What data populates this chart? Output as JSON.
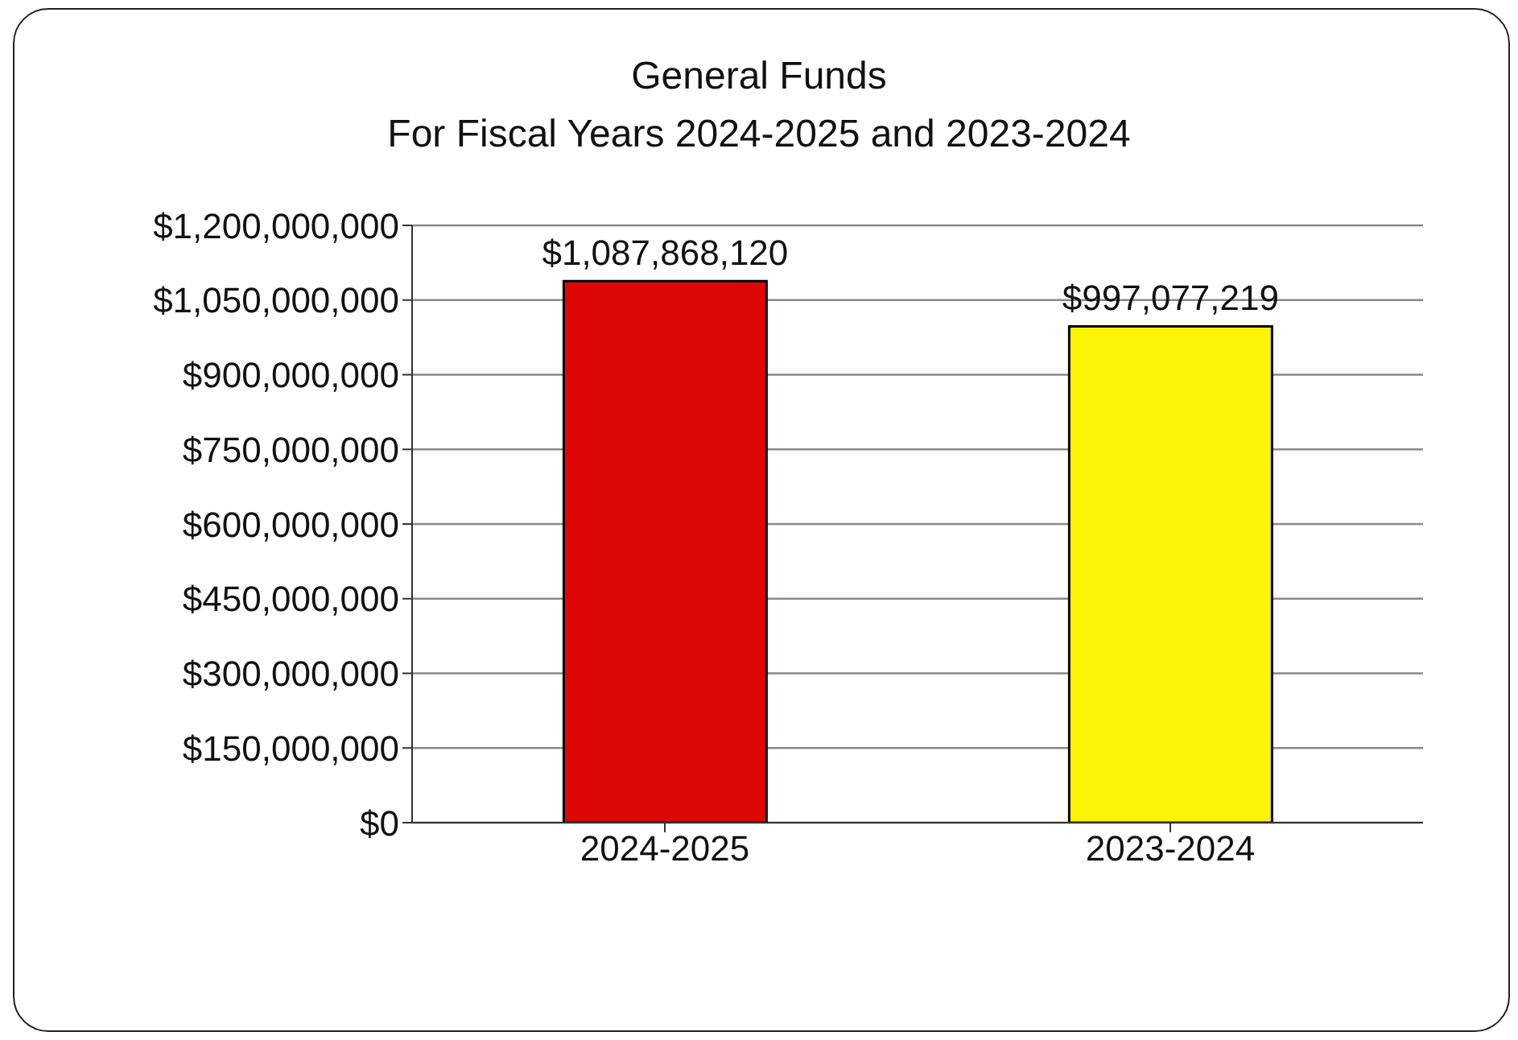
{
  "chart_data": {
    "type": "bar",
    "title": "General Funds",
    "subtitle": "For Fiscal Years 2024-2025 and 2023-2024",
    "categories": [
      "2024-2025",
      "2023-2024"
    ],
    "values": [
      1087868120,
      997077219
    ],
    "colors": [
      "#dd0806",
      "#fcf305"
    ],
    "value_labels": [
      "$1,087,868,120",
      "$997,077,219"
    ],
    "ylim": [
      0,
      1200000000
    ],
    "yticks": [
      {
        "value": 0,
        "label": "$0"
      },
      {
        "value": 150000000,
        "label": "$150,000,000"
      },
      {
        "value": 300000000,
        "label": "$300,000,000"
      },
      {
        "value": 450000000,
        "label": "$450,000,000"
      },
      {
        "value": 600000000,
        "label": "$600,000,000"
      },
      {
        "value": 750000000,
        "label": "$750,000,000"
      },
      {
        "value": 900000000,
        "label": "$900,000,000"
      },
      {
        "value": 1050000000,
        "label": "$1,050,000,000"
      },
      {
        "value": 1200000000,
        "label": "$1,200,000,000"
      }
    ],
    "grid": "y"
  }
}
